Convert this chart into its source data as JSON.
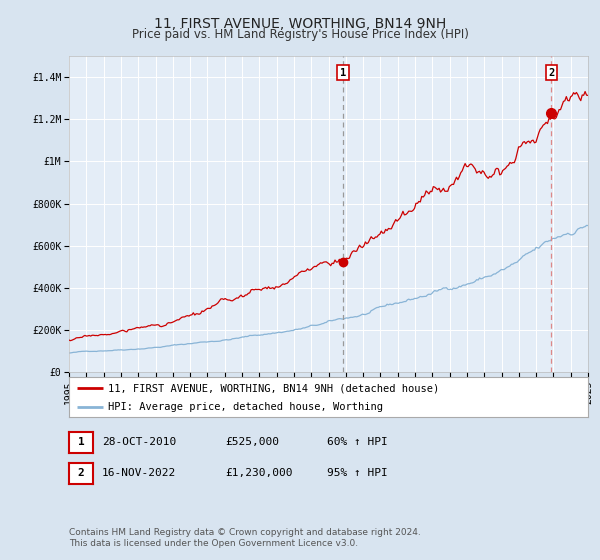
{
  "title": "11, FIRST AVENUE, WORTHING, BN14 9NH",
  "subtitle": "Price paid vs. HM Land Registry's House Price Index (HPI)",
  "x_start_year": 1995,
  "x_end_year": 2025,
  "ylim": [
    0,
    1500000
  ],
  "yticks": [
    0,
    200000,
    400000,
    600000,
    800000,
    1000000,
    1200000,
    1400000
  ],
  "ytick_labels": [
    "£0",
    "£200K",
    "£400K",
    "£600K",
    "£800K",
    "£1M",
    "£1.2M",
    "£1.4M"
  ],
  "bg_color": "#d8e4f0",
  "plot_bg_color": "#e4edf7",
  "grid_color": "#ffffff",
  "red_line_color": "#cc0000",
  "blue_line_color": "#89b4d6",
  "dashed_vline1_color": "#999999",
  "dashed_vline2_color": "#dd8888",
  "marker1_year": 2010.83,
  "marker1_price": 525000,
  "marker2_year": 2022.88,
  "marker2_price": 1230000,
  "legend_red_label": "11, FIRST AVENUE, WORTHING, BN14 9NH (detached house)",
  "legend_blue_label": "HPI: Average price, detached house, Worthing",
  "table_row1": [
    "1",
    "28-OCT-2010",
    "£525,000",
    "60% ↑ HPI"
  ],
  "table_row2": [
    "2",
    "16-NOV-2022",
    "£1,230,000",
    "95% ↑ HPI"
  ],
  "footer": "Contains HM Land Registry data © Crown copyright and database right 2024.\nThis data is licensed under the Open Government Licence v3.0.",
  "title_fontsize": 10,
  "subtitle_fontsize": 8.5,
  "tick_fontsize": 7,
  "legend_fontsize": 7.5
}
